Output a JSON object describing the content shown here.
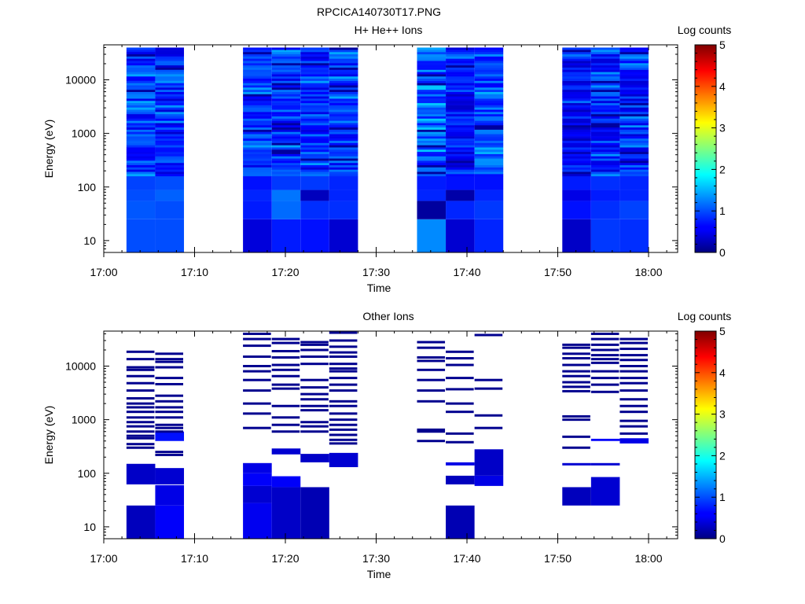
{
  "figure_title": "RPCICA140730T17.PNG",
  "chart_data": [
    {
      "type": "heatmap",
      "title": "H+ He++ Ions",
      "xlabel": "Time",
      "ylabel": "Energy (eV)",
      "x_ticks": [
        "17:00",
        "17:10",
        "17:20",
        "17:30",
        "17:40",
        "17:50",
        "18:00"
      ],
      "y_ticks": [
        "10",
        "100",
        "1000",
        "10000"
      ],
      "y_scale": "log",
      "ylim": [
        6,
        45000
      ],
      "colorbar": {
        "label": "Log counts",
        "ticks": [
          "0",
          "1",
          "2",
          "3",
          "4",
          "5"
        ],
        "range": [
          0,
          5
        ]
      },
      "columns": [
        {
          "start": "17:02:30",
          "end": "17:05:40",
          "top_energy": 40000,
          "low": [
            1.0,
            1.05,
            1.0,
            0.95
          ],
          "median": 0.9
        },
        {
          "start": "17:05:40",
          "end": "17:08:50",
          "top_energy": 40000,
          "low": [
            1.0,
            1.0,
            1.1,
            1.0
          ],
          "median": 0.8
        },
        {
          "start": "17:15:20",
          "end": "17:18:30",
          "top_energy": 40000,
          "low": [
            0.45,
            0.75,
            0.8,
            0.7
          ],
          "median": 0.85
        },
        {
          "start": "17:18:30",
          "end": "17:21:40",
          "top_energy": 40000,
          "low": [
            0.75,
            1.15,
            1.2,
            0.9
          ],
          "median": 0.9
        },
        {
          "start": "17:21:40",
          "end": "17:24:50",
          "top_energy": 40000,
          "low": [
            0.7,
            0.85,
            0.3,
            0.9
          ],
          "median": 0.85
        },
        {
          "start": "17:24:50",
          "end": "17:28:00",
          "top_energy": 40000,
          "low": [
            0.4,
            0.85,
            0.8,
            0.8
          ],
          "median": 0.9
        },
        {
          "start": "17:34:30",
          "end": "17:37:40",
          "top_energy": 40000,
          "low": [
            1.3,
            0.15,
            0.8,
            0.75
          ],
          "median": 1.05
        },
        {
          "start": "17:37:40",
          "end": "17:40:50",
          "top_energy": 40000,
          "low": [
            0.4,
            0.8,
            0.2,
            0.7
          ],
          "median": 0.75
        },
        {
          "start": "17:40:50",
          "end": "17:44:00",
          "top_energy": 40000,
          "low": [
            0.8,
            0.9,
            0.8,
            0.7
          ],
          "median": 0.95
        },
        {
          "start": "17:50:30",
          "end": "17:53:40",
          "top_energy": 40000,
          "low": [
            0.35,
            0.7,
            0.5,
            0.75
          ],
          "median": 0.65
        },
        {
          "start": "17:53:40",
          "end": "17:56:50",
          "top_energy": 40000,
          "low": [
            0.9,
            0.85,
            0.75,
            0.85
          ],
          "median": 0.8
        },
        {
          "start": "17:56:50",
          "end": "18:00:00",
          "top_energy": 40000,
          "low": [
            0.85,
            0.95,
            0.8,
            0.8
          ],
          "median": 0.8
        }
      ]
    },
    {
      "type": "heatmap",
      "title": "Other Ions",
      "xlabel": "Time",
      "ylabel": "Energy (eV)",
      "x_ticks": [
        "17:00",
        "17:10",
        "17:20",
        "17:30",
        "17:40",
        "17:50",
        "18:00"
      ],
      "y_ticks": [
        "10",
        "100",
        "1000",
        "10000"
      ],
      "y_scale": "log",
      "ylim": [
        6,
        45000
      ],
      "colorbar": {
        "label": "Log counts",
        "ticks": [
          "0",
          "1",
          "2",
          "3",
          "4",
          "5"
        ],
        "range": [
          0,
          5
        ]
      },
      "columns": [
        {
          "start": "17:02:30",
          "end": "17:05:40",
          "blocks": [
            [
              6,
              25,
              0.3
            ],
            [
              62,
              150,
              0.35
            ]
          ],
          "lines": [
            18500,
            13500,
            9500,
            8500,
            6500,
            4800,
            3500,
            2500,
            2000,
            1700,
            1400,
            1100,
            900,
            750,
            600,
            500,
            450,
            350,
            300
          ]
        },
        {
          "start": "17:05:40",
          "end": "17:08:50",
          "blocks": [
            [
              6,
              25,
              0.6
            ],
            [
              25,
              60,
              0.5
            ],
            [
              62,
              125,
              0.4
            ],
            [
              400,
              600,
              0.7
            ]
          ],
          "lines": [
            17000,
            13500,
            12000,
            9500,
            6000,
            4600,
            2800,
            2200,
            1700,
            1400,
            1100,
            800,
            700,
            600,
            250,
            220
          ]
        },
        {
          "start": "17:15:20",
          "end": "17:18:30",
          "blocks": [
            [
              6,
              28,
              0.55
            ],
            [
              28,
              58,
              0.4
            ],
            [
              58,
              100,
              0.6
            ],
            [
              100,
              155,
              0.5
            ]
          ],
          "lines": [
            40000,
            32000,
            24000,
            15000,
            10000,
            8000,
            5500,
            3500,
            2000,
            1300,
            700
          ]
        },
        {
          "start": "17:18:30",
          "end": "17:21:40",
          "blocks": [
            [
              6,
              55,
              0.35
            ],
            [
              55,
              88,
              0.6
            ],
            [
              225,
              290,
              0.4
            ]
          ],
          "lines": [
            32000,
            27000,
            19000,
            14500,
            10500,
            8500,
            6500,
            4500,
            3800,
            1800,
            1100,
            800,
            600
          ]
        },
        {
          "start": "17:21:40",
          "end": "17:24:50",
          "blocks": [
            [
              6,
              55,
              0.25
            ],
            [
              160,
              230,
              0.35
            ]
          ],
          "lines": [
            28000,
            25000,
            20000,
            15000,
            11000,
            5500,
            4000,
            3000,
            2400,
            1800,
            1500,
            900,
            750,
            600
          ]
        },
        {
          "start": "17:24:50",
          "end": "17:28:00",
          "blocks": [
            [
              130,
              240,
              0.4
            ]
          ],
          "lines": [
            42000,
            30000,
            23000,
            18000,
            15000,
            11000,
            9000,
            8000,
            6000,
            4500,
            3500,
            2200,
            1800,
            1300,
            1000,
            800,
            650,
            520,
            420,
            360
          ]
        },
        {
          "start": "17:34:30",
          "end": "17:37:40",
          "blocks": [],
          "lines": [
            28000,
            22000,
            14500,
            12500,
            8500,
            5500,
            3500,
            2200,
            650,
            600,
            400
          ]
        },
        {
          "start": "17:37:40",
          "end": "17:40:50",
          "blocks": [
            [
              6,
              25,
              0.25
            ],
            [
              62,
              90,
              0.3
            ],
            [
              140,
              160,
              0.5
            ]
          ],
          "lines": [
            18500,
            14000,
            10500,
            6000,
            3700,
            2000,
            1400,
            550,
            380
          ]
        },
        {
          "start": "17:40:50",
          "end": "17:44:00",
          "blocks": [
            [
              58,
              90,
              0.5
            ],
            [
              90,
              280,
              0.35
            ]
          ],
          "lines": [
            38000,
            5500,
            3800,
            1200,
            700
          ]
        },
        {
          "start": "17:50:30",
          "end": "17:53:40",
          "blocks": [
            [
              25,
              55,
              0.3
            ],
            [
              140,
              155,
              0.4
            ]
          ],
          "lines": [
            25000,
            22000,
            17000,
            14000,
            10500,
            8000,
            6500,
            5000,
            4100,
            3400,
            1150,
            1000,
            480,
            300
          ]
        },
        {
          "start": "17:53:40",
          "end": "17:56:50",
          "blocks": [
            [
              25,
              85,
              0.4
            ],
            [
              140,
              155,
              0.4
            ],
            [
              400,
              440,
              0.6
            ]
          ],
          "lines": [
            40000,
            32000,
            25000,
            20000,
            16000,
            13500,
            11500,
            8000,
            6000,
            4500,
            3300
          ]
        },
        {
          "start": "17:56:50",
          "end": "18:00:00",
          "blocks": [
            [
              360,
              450,
              0.5
            ]
          ],
          "lines": [
            32000,
            27000,
            21000,
            16000,
            13000,
            10000,
            8000,
            6000,
            4800,
            3500,
            2400,
            1800,
            1400,
            950,
            750,
            550
          ]
        }
      ]
    }
  ]
}
